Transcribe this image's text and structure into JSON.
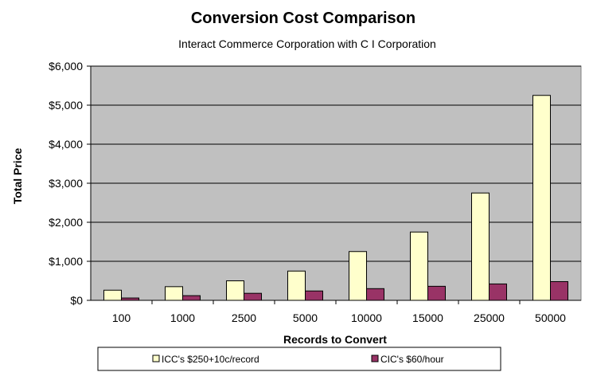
{
  "chart_data": {
    "type": "bar",
    "title": "Conversion Cost Comparison",
    "subtitle": "Interact Commerce Corporation with C I Corporation",
    "xlabel": "Records to Convert",
    "ylabel": "Total Price",
    "categories": [
      "100",
      "1000",
      "2500",
      "5000",
      "10000",
      "15000",
      "25000",
      "50000"
    ],
    "ylim": [
      0,
      6000
    ],
    "yticks": [
      0,
      1000,
      2000,
      3000,
      4000,
      5000,
      6000
    ],
    "ytick_labels": [
      "$0",
      "$1,000",
      "$2,000",
      "$3,000",
      "$4,000",
      "$5,000",
      "$6,000"
    ],
    "grid": true,
    "legend_position": "bottom",
    "series": [
      {
        "name": "ICC's $250+10c/record",
        "color": "#FFFFCC",
        "values": [
          260,
          350,
          500,
          750,
          1250,
          1750,
          2750,
          5250
        ]
      },
      {
        "name": "CIC's $60/hour",
        "color": "#993366",
        "values": [
          60,
          120,
          180,
          240,
          300,
          360,
          420,
          480
        ]
      }
    ],
    "plot_background": "#C0C0C0"
  }
}
